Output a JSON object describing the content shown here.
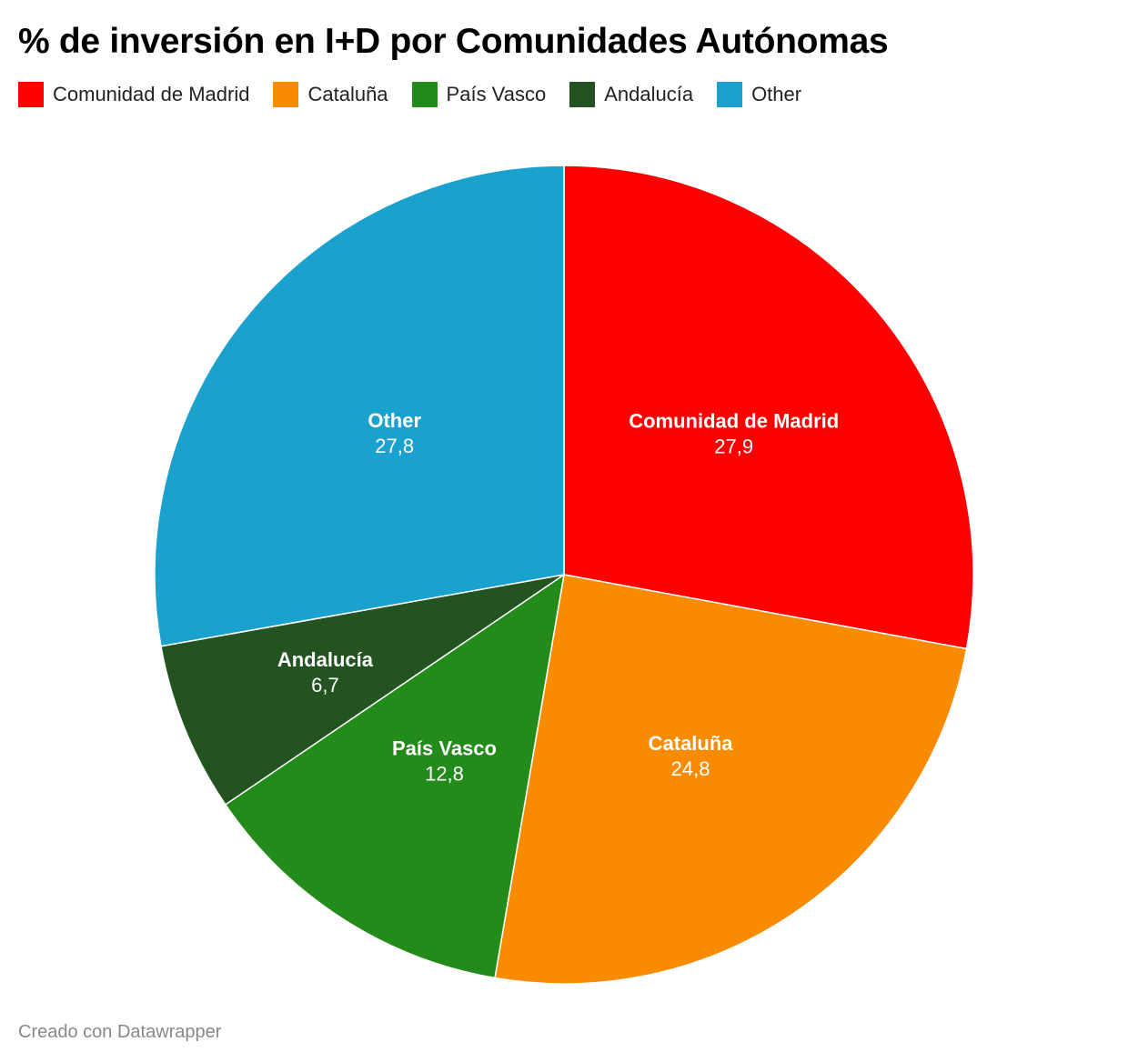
{
  "chart_data": {
    "type": "pie",
    "title": "% de inversión en I+D por Comunidades Autónomas",
    "slices": [
      {
        "label": "Comunidad de Madrid",
        "value": 27.9,
        "value_label": "27,9",
        "color": "#ff0000"
      },
      {
        "label": "Cataluña",
        "value": 24.8,
        "value_label": "24,8",
        "color": "#f98b00"
      },
      {
        "label": "País Vasco",
        "value": 12.8,
        "value_label": "12,8",
        "color": "#228b1a"
      },
      {
        "label": "Andalucía",
        "value": 6.7,
        "value_label": "6,7",
        "color": "#245322"
      },
      {
        "label": "Other",
        "value": 27.8,
        "value_label": "27,8",
        "color": "#1aa1cd"
      }
    ],
    "legend_position": "top-left",
    "start_angle": "12 o'clock",
    "direction": "clockwise"
  },
  "footer": {
    "credit": "Creado con Datawrapper"
  }
}
